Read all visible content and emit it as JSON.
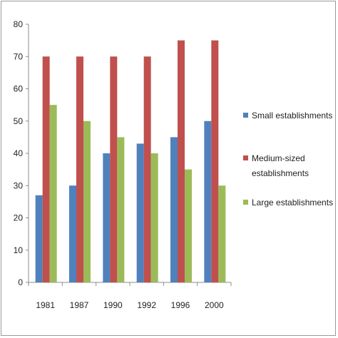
{
  "chart_data": {
    "type": "bar",
    "categories": [
      "1981",
      "1987",
      "1990",
      "1992",
      "1996",
      "2000"
    ],
    "series": [
      {
        "name": "Small establishments",
        "values": [
          27,
          30,
          40,
          43,
          45,
          50
        ],
        "color": "#4f81bd"
      },
      {
        "name": "Medium-sized establishments",
        "name_lines": [
          "Medium-sized",
          "establishments"
        ],
        "values": [
          70,
          70,
          70,
          70,
          75,
          75
        ],
        "color": "#c0504d"
      },
      {
        "name": "Large establishments",
        "values": [
          55,
          50,
          45,
          40,
          35,
          30
        ],
        "color": "#9bbb59"
      }
    ],
    "ylim": [
      0,
      80
    ],
    "yticks": [
      "0",
      "10",
      "20",
      "30",
      "40",
      "50",
      "60",
      "70",
      "80"
    ],
    "grid": false,
    "legend": "right",
    "title": "",
    "xlabel": "",
    "ylabel": ""
  }
}
